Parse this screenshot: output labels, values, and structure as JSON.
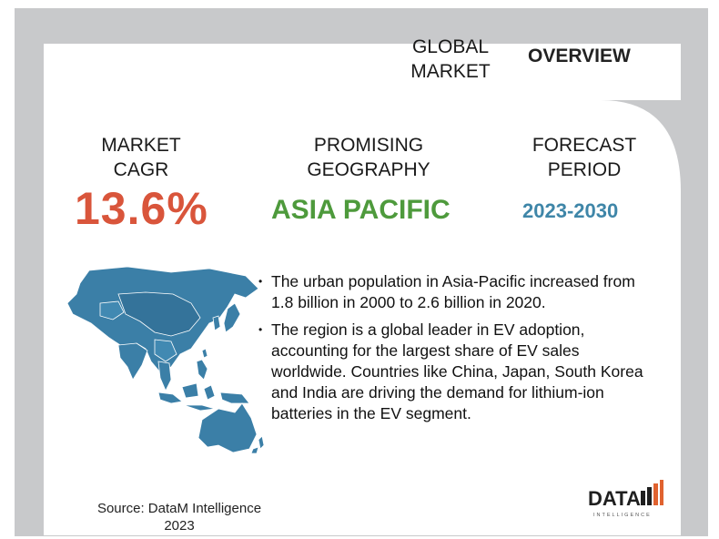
{
  "header": {
    "global_market_line1": "GLOBAL",
    "global_market_line2": "MARKET",
    "overview": "OVERVIEW"
  },
  "stats": {
    "cagr_label_line1": "MARKET",
    "cagr_label_line2": "CAGR",
    "cagr_value": "13.6%",
    "geo_label_line1": "PROMISING",
    "geo_label_line2": "GEOGRAPHY",
    "geo_value": "ASIA PACIFIC",
    "period_label_line1": "FORECAST",
    "period_label_line2": "PERIOD",
    "period_value": "2023-2030"
  },
  "bullets": [
    "The urban population in Asia-Pacific increased from 1.8 billion in 2000 to 2.6 billion in 2020.",
    "The region is a global leader in EV adoption, accounting for the largest share of EV sales worldwide. Countries like China, Japan, South Korea and India are driving the demand for lithium-ion batteries in the EV segment."
  ],
  "source": {
    "line1": "Source: DataM Intelligence",
    "line2": "2023"
  },
  "logo": {
    "word": "DATA",
    "tagline": "INTELLIGENCE"
  },
  "colors": {
    "cagr": "#d9553b",
    "geography": "#4e9a3c",
    "period": "#3f86a8",
    "map": "#3b7fa7",
    "frame": "#c8c9cb"
  },
  "icons": {
    "map": "asia-pacific-map",
    "logo": "datam-intelligence-logo"
  }
}
